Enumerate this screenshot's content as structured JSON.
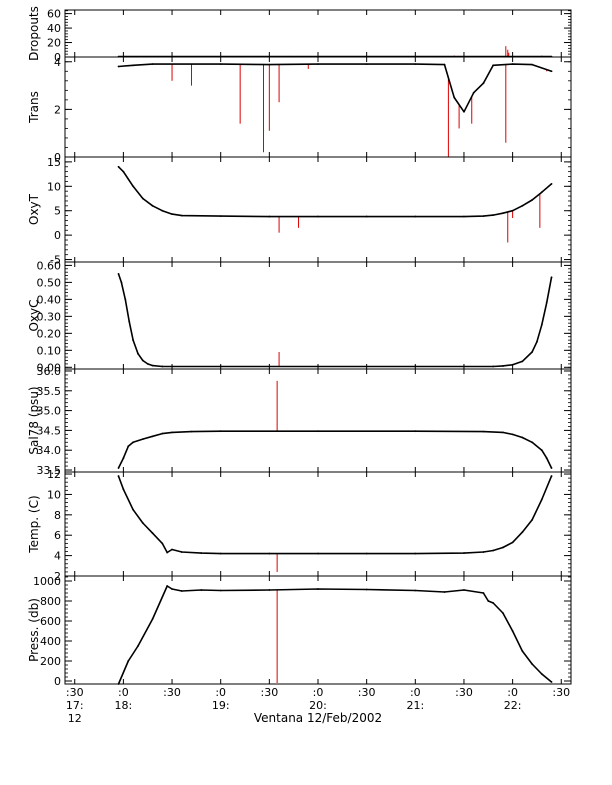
{
  "figure": {
    "xlabel": "Ventana 12/Feb/2002",
    "x_ticks": [
      {
        "t": -0.5,
        "top": ":30",
        "mid": "17:",
        "bot": "12"
      },
      {
        "t": 0.0,
        "top": ":0",
        "mid": "18:",
        "bot": ""
      },
      {
        "t": 0.5,
        "top": ":30",
        "mid": "",
        "bot": ""
      },
      {
        "t": 1.0,
        "top": ":0",
        "mid": "19:",
        "bot": ""
      },
      {
        "t": 1.5,
        "top": ":30",
        "mid": "",
        "bot": ""
      },
      {
        "t": 2.0,
        "top": ":0",
        "mid": "20:",
        "bot": ""
      },
      {
        "t": 2.5,
        "top": ":30",
        "mid": "",
        "bot": ""
      },
      {
        "t": 3.0,
        "top": ":0",
        "mid": "21:",
        "bot": ""
      },
      {
        "t": 3.5,
        "top": ":30",
        "mid": "",
        "bot": ""
      },
      {
        "t": 4.0,
        "top": ":0",
        "mid": "22:",
        "bot": ""
      },
      {
        "t": 4.5,
        "top": ":30",
        "mid": "",
        "bot": ""
      }
    ],
    "colors": {
      "trace": "#000000",
      "spike": "#dd0000",
      "axis": "#000000"
    }
  },
  "chart_data": [
    {
      "type": "line",
      "ylabel": "Dropouts",
      "ylim": [
        0,
        65
      ],
      "yticks": [
        0,
        20,
        40,
        60
      ],
      "yticklabels": [
        "0",
        "20",
        "40",
        "60"
      ],
      "x": [
        -0.05,
        4.4
      ],
      "y": [
        0.5,
        0.5
      ],
      "spikes": [
        [
          3.93,
          15
        ],
        [
          3.95,
          10
        ],
        [
          3.96,
          6
        ],
        [
          3.4,
          2
        ],
        [
          1.7,
          1.5
        ],
        [
          4.3,
          2
        ]
      ]
    },
    {
      "type": "line",
      "ylabel": "Trans",
      "ylim": [
        0,
        4.2
      ],
      "yticks": [
        0,
        2,
        4
      ],
      "yticklabels": [
        "0",
        "2",
        "4"
      ],
      "x": [
        -0.05,
        0.1,
        0.3,
        1.0,
        1.5,
        2.0,
        2.5,
        3.0,
        3.3,
        3.4,
        3.5,
        3.6,
        3.7,
        3.8,
        4.0,
        4.2,
        4.4
      ],
      "y": [
        3.8,
        3.85,
        3.9,
        3.9,
        3.88,
        3.9,
        3.9,
        3.9,
        3.88,
        2.5,
        1.9,
        2.7,
        3.1,
        3.85,
        3.9,
        3.88,
        3.6
      ],
      "spikes": [
        [
          0.5,
          3.2
        ],
        [
          0.7,
          3.0
        ],
        [
          1.2,
          1.4
        ],
        [
          1.44,
          0.2
        ],
        [
          1.5,
          1.1
        ],
        [
          1.6,
          2.3
        ],
        [
          1.9,
          3.7
        ],
        [
          3.34,
          0.0
        ],
        [
          3.45,
          1.2
        ],
        [
          3.58,
          1.4
        ],
        [
          3.93,
          0.6
        ],
        [
          4.35,
          3.6
        ]
      ]
    },
    {
      "type": "line",
      "ylabel": "OxyT",
      "ylim": [
        -5.5,
        16
      ],
      "yticks": [
        -5,
        0,
        5,
        10,
        15
      ],
      "yticklabels": [
        "-5",
        "0",
        "5",
        "10",
        "15"
      ],
      "x": [
        -0.05,
        0.0,
        0.1,
        0.2,
        0.3,
        0.4,
        0.5,
        0.6,
        1.0,
        1.5,
        2.0,
        2.5,
        3.0,
        3.5,
        3.7,
        3.8,
        3.9,
        4.0,
        4.1,
        4.2,
        4.3,
        4.4
      ],
      "y": [
        14.0,
        13.0,
        10.0,
        7.5,
        6.0,
        5.0,
        4.3,
        4.0,
        3.9,
        3.8,
        3.8,
        3.8,
        3.8,
        3.8,
        3.9,
        4.1,
        4.5,
        5.0,
        6.0,
        7.2,
        8.8,
        10.5
      ],
      "spikes": [
        [
          1.6,
          0.5
        ],
        [
          1.8,
          1.5
        ],
        [
          3.95,
          -1.5
        ],
        [
          4.0,
          3.5
        ],
        [
          4.28,
          1.5
        ]
      ]
    },
    {
      "type": "line",
      "ylabel": "OxyC",
      "ylim": [
        -0.01,
        0.62
      ],
      "yticks": [
        0.0,
        0.1,
        0.2,
        0.3,
        0.4,
        0.5,
        0.6
      ],
      "yticklabels": [
        "0.00",
        "0.10",
        "0.20",
        "0.30",
        "0.40",
        "0.50",
        "0.60"
      ],
      "x": [
        -0.05,
        -0.02,
        0.02,
        0.06,
        0.1,
        0.15,
        0.2,
        0.25,
        0.3,
        0.4,
        0.5,
        1.0,
        2.0,
        3.0,
        3.8,
        3.9,
        4.0,
        4.1,
        4.2,
        4.25,
        4.3,
        4.35,
        4.4
      ],
      "y": [
        0.55,
        0.5,
        0.4,
        0.27,
        0.16,
        0.08,
        0.04,
        0.02,
        0.01,
        0.005,
        0.005,
        0.005,
        0.005,
        0.005,
        0.005,
        0.008,
        0.015,
        0.035,
        0.09,
        0.15,
        0.25,
        0.38,
        0.53
      ],
      "spikes": [
        [
          1.6,
          0.09
        ]
      ]
    },
    {
      "type": "line",
      "ylabel": "Sal78 (psu)",
      "ylim": [
        33.45,
        36.05
      ],
      "yticks": [
        33.5,
        34.0,
        34.5,
        35.0,
        35.5,
        36.0
      ],
      "yticklabels": [
        "33.5",
        "34.0",
        "34.5",
        "35.0",
        "35.5",
        "36.0"
      ],
      "x": [
        -0.05,
        0.0,
        0.05,
        0.1,
        0.2,
        0.3,
        0.4,
        0.5,
        0.7,
        1.0,
        2.0,
        3.0,
        3.7,
        3.9,
        4.0,
        4.1,
        4.2,
        4.3,
        4.35,
        4.4
      ],
      "y": [
        33.55,
        33.8,
        34.1,
        34.2,
        34.28,
        34.35,
        34.42,
        34.45,
        34.47,
        34.48,
        34.48,
        34.48,
        34.47,
        34.45,
        34.4,
        34.32,
        34.2,
        34.0,
        33.8,
        33.55
      ],
      "spikes": [
        [
          1.58,
          35.75
        ]
      ]
    },
    {
      "type": "line",
      "ylabel": "Temp. (C)",
      "ylim": [
        2.0,
        12.2
      ],
      "yticks": [
        2,
        4,
        6,
        8,
        10,
        12
      ],
      "yticklabels": [
        "2",
        "4",
        "6",
        "8",
        "10",
        "12"
      ],
      "x": [
        -0.05,
        0.0,
        0.1,
        0.2,
        0.3,
        0.4,
        0.45,
        0.5,
        0.6,
        0.8,
        1.0,
        1.5,
        2.0,
        2.5,
        3.0,
        3.5,
        3.7,
        3.8,
        3.9,
        4.0,
        4.1,
        4.2,
        4.3,
        4.4
      ],
      "y": [
        11.8,
        10.5,
        8.5,
        7.2,
        6.2,
        5.2,
        4.3,
        4.6,
        4.35,
        4.25,
        4.2,
        4.2,
        4.2,
        4.2,
        4.2,
        4.25,
        4.35,
        4.5,
        4.8,
        5.3,
        6.3,
        7.5,
        9.5,
        11.8
      ],
      "spikes": [
        [
          1.58,
          2.4
        ]
      ]
    },
    {
      "type": "line",
      "ylabel": "Press. (db)",
      "ylim": [
        -30,
        1050
      ],
      "yticks": [
        0,
        200,
        400,
        600,
        800,
        1000
      ],
      "yticklabels": [
        "0",
        "200",
        "400",
        "600",
        "800",
        "1000"
      ],
      "x": [
        -0.05,
        0.05,
        0.15,
        0.3,
        0.45,
        0.5,
        0.6,
        0.8,
        1.0,
        1.5,
        2.0,
        2.5,
        3.0,
        3.3,
        3.5,
        3.7,
        3.75,
        3.8,
        3.9,
        4.0,
        4.1,
        4.2,
        4.3,
        4.4
      ],
      "y": [
        -30,
        200,
        350,
        620,
        950,
        920,
        900,
        910,
        905,
        910,
        920,
        915,
        905,
        890,
        910,
        880,
        800,
        780,
        680,
        500,
        300,
        170,
        70,
        -10
      ],
      "spikes": [
        [
          1.58,
          -20
        ]
      ]
    }
  ]
}
